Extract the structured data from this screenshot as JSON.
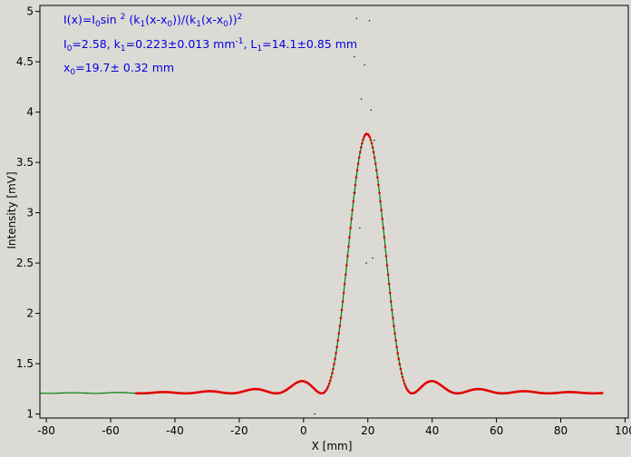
{
  "chart_data": {
    "type": "scatter",
    "xlabel": "X [mm]",
    "ylabel": "Intensity [mV]",
    "xlim": [
      -82,
      101
    ],
    "ylim": [
      0.96,
      5.06
    ],
    "xticks": [
      -80,
      -60,
      -40,
      -20,
      0,
      20,
      40,
      60,
      80,
      100
    ],
    "yticks": [
      1,
      1.5,
      2,
      2.5,
      3,
      3.5,
      4,
      4.5,
      5
    ],
    "grid": false,
    "series": [
      {
        "color": "#008000",
        "x_range": [
          -82,
          93
        ],
        "description_model": "I(x)=I0 sin^2(k1(x-x0))/(k1(x-x0))^2 + offset"
      },
      {
        "color": "#e00000",
        "x_range": [
          -52,
          93
        ]
      }
    ],
    "fit": {
      "I0": 2.58,
      "k1": 0.223,
      "k1_err": 0.013,
      "L1": 14.1,
      "L1_err": 0.85,
      "x0": 19.7,
      "x0_err": 0.32,
      "offset": 1.205
    },
    "annotations": {
      "formula": {
        "p1": "I(x)=I",
        "s1": "0",
        "p2": "sin ",
        "sup1": "2",
        "p3": " (k",
        "s2": "1",
        "p4": "(x-x",
        "s3": "0",
        "p5": "))/(k",
        "s4": "1",
        "p6": "(x-x",
        "s5": "0",
        "p7": "))",
        "sup2": "2"
      },
      "params": {
        "p1": "I",
        "s1": "0",
        "p2": "=2.58,  k",
        "s2": "1",
        "p3": "=0.223±0.013 mm",
        "sup1": "-1",
        "p4": ",   L",
        "s3": "1",
        "p5": "=14.1±0.85 mm"
      },
      "x0_line": {
        "p1": "x",
        "s1": "0",
        "p2": "=19.7±   0.32 mm"
      }
    }
  }
}
